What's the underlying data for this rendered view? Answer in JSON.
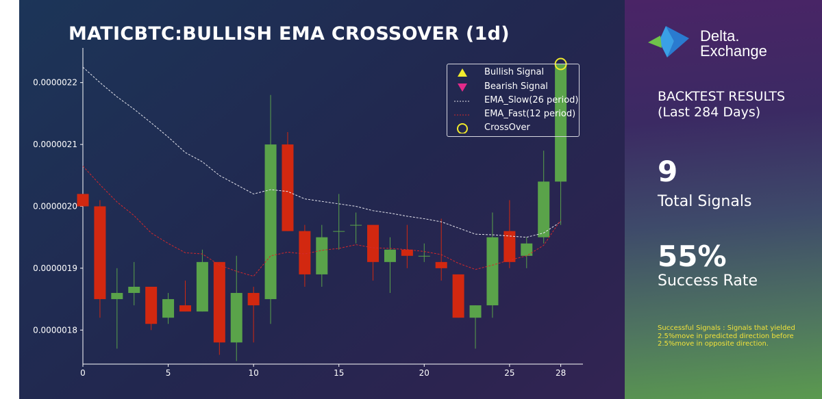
{
  "title": "MATICBTC:BULLISH EMA CROSSOVER (1d)",
  "chart_data": {
    "type": "candlestick",
    "x_ticks": [
      0,
      5,
      10,
      15,
      20,
      25,
      28
    ],
    "y_ticks": [
      "0.0000018",
      "0.0000019",
      "0.0000020",
      "0.0000021",
      "0.0000022"
    ],
    "y_tick_values": [
      1.8e-06,
      1.9e-06,
      2e-06,
      2.1e-06,
      2.2e-06
    ],
    "xlim": [
      0,
      29.3
    ],
    "ylim": [
      1.745e-06,
      2.245e-06
    ],
    "candles": [
      {
        "x": 0,
        "open": 2.02e-06,
        "close": 2e-06,
        "high": 2.02e-06,
        "low": 2e-06
      },
      {
        "x": 1,
        "open": 2e-06,
        "close": 1.85e-06,
        "high": 2.01e-06,
        "low": 1.82e-06
      },
      {
        "x": 2,
        "open": 1.85e-06,
        "close": 1.86e-06,
        "high": 1.9e-06,
        "low": 1.77e-06
      },
      {
        "x": 3,
        "open": 1.86e-06,
        "close": 1.87e-06,
        "high": 1.91e-06,
        "low": 1.84e-06
      },
      {
        "x": 4,
        "open": 1.87e-06,
        "close": 1.81e-06,
        "high": 1.87e-06,
        "low": 1.8e-06
      },
      {
        "x": 5,
        "open": 1.82e-06,
        "close": 1.85e-06,
        "high": 1.86e-06,
        "low": 1.81e-06
      },
      {
        "x": 6,
        "open": 1.84e-06,
        "close": 1.83e-06,
        "high": 1.88e-06,
        "low": 1.83e-06
      },
      {
        "x": 7,
        "open": 1.83e-06,
        "close": 1.91e-06,
        "high": 1.93e-06,
        "low": 1.83e-06
      },
      {
        "x": 8,
        "open": 1.91e-06,
        "close": 1.78e-06,
        "high": 1.91e-06,
        "low": 1.76e-06
      },
      {
        "x": 9,
        "open": 1.78e-06,
        "close": 1.86e-06,
        "high": 1.92e-06,
        "low": 1.75e-06
      },
      {
        "x": 10,
        "open": 1.86e-06,
        "close": 1.84e-06,
        "high": 1.87e-06,
        "low": 1.78e-06
      },
      {
        "x": 11,
        "open": 1.85e-06,
        "close": 2.1e-06,
        "high": 2.18e-06,
        "low": 1.81e-06
      },
      {
        "x": 12,
        "open": 2.1e-06,
        "close": 1.96e-06,
        "high": 2.12e-06,
        "low": 1.96e-06
      },
      {
        "x": 13,
        "open": 1.96e-06,
        "close": 1.89e-06,
        "high": 1.97e-06,
        "low": 1.87e-06
      },
      {
        "x": 14,
        "open": 1.89e-06,
        "close": 1.95e-06,
        "high": 1.97e-06,
        "low": 1.87e-06
      },
      {
        "x": 15,
        "open": 1.96e-06,
        "close": 1.96e-06,
        "high": 2.02e-06,
        "low": 1.93e-06
      },
      {
        "x": 16,
        "open": 1.97e-06,
        "close": 1.97e-06,
        "high": 1.99e-06,
        "low": 1.94e-06
      },
      {
        "x": 17,
        "open": 1.97e-06,
        "close": 1.91e-06,
        "high": 1.97e-06,
        "low": 1.88e-06
      },
      {
        "x": 18,
        "open": 1.91e-06,
        "close": 1.93e-06,
        "high": 1.95e-06,
        "low": 1.86e-06
      },
      {
        "x": 19,
        "open": 1.93e-06,
        "close": 1.92e-06,
        "high": 1.97e-06,
        "low": 1.9e-06
      },
      {
        "x": 20,
        "open": 1.92e-06,
        "close": 1.92e-06,
        "high": 1.94e-06,
        "low": 1.91e-06
      },
      {
        "x": 21,
        "open": 1.91e-06,
        "close": 1.9e-06,
        "high": 1.98e-06,
        "low": 1.88e-06
      },
      {
        "x": 22,
        "open": 1.89e-06,
        "close": 1.82e-06,
        "high": 1.89e-06,
        "low": 1.82e-06
      },
      {
        "x": 23,
        "open": 1.82e-06,
        "close": 1.84e-06,
        "high": 1.84e-06,
        "low": 1.77e-06
      },
      {
        "x": 24,
        "open": 1.84e-06,
        "close": 1.95e-06,
        "high": 1.99e-06,
        "low": 1.82e-06
      },
      {
        "x": 25,
        "open": 1.96e-06,
        "close": 1.91e-06,
        "high": 2.01e-06,
        "low": 1.9e-06
      },
      {
        "x": 26,
        "open": 1.92e-06,
        "close": 1.94e-06,
        "high": 1.95e-06,
        "low": 1.9e-06
      },
      {
        "x": 27,
        "open": 1.95e-06,
        "close": 2.04e-06,
        "high": 2.09e-06,
        "low": 1.94e-06
      },
      {
        "x": 28,
        "open": 2.04e-06,
        "close": 2.23e-06,
        "high": 2.23e-06,
        "low": 1.97e-06
      }
    ],
    "ema_slow": {
      "name": "EMA_Slow(26 period)",
      "values": [
        2.225e-06,
        2.2e-06,
        2.177e-06,
        2.157e-06,
        2.135e-06,
        2.112e-06,
        2.087e-06,
        2.072e-06,
        2.05e-06,
        2.035e-06,
        2.02e-06,
        2.027e-06,
        2.024e-06,
        2.012e-06,
        2.008e-06,
        2.004e-06,
        2e-06,
        1.993e-06,
        1.989e-06,
        1.984e-06,
        1.98e-06,
        1.975e-06,
        1.965e-06,
        1.955e-06,
        1.954e-06,
        1.952e-06,
        1.95e-06,
        1.957e-06,
        1.975e-06
      ]
    },
    "ema_fast": {
      "name": "EMA_Fast(12 period)",
      "values": [
        2.065e-06,
        2.035e-06,
        2.007e-06,
        1.985e-06,
        1.957e-06,
        1.94e-06,
        1.925e-06,
        1.923e-06,
        1.905e-06,
        1.895e-06,
        1.887e-06,
        1.92e-06,
        1.926e-06,
        1.923e-06,
        1.929e-06,
        1.932e-06,
        1.938e-06,
        1.933e-06,
        1.932e-06,
        1.93e-06,
        1.927e-06,
        1.922e-06,
        1.908e-06,
        1.898e-06,
        1.905e-06,
        1.913e-06,
        1.92e-06,
        1.937e-06,
        1.978e-06
      ]
    },
    "crossover": {
      "x": 28,
      "y": 2.23e-06
    },
    "legend": [
      "Bullish Signal",
      "Bearish Signal",
      "EMA_Slow(26 period)",
      "EMA_Fast(12 period)",
      "CrossOver"
    ],
    "legend_position": "top-right",
    "colors": {
      "bull": "#5aa34a",
      "bear": "#d22810",
      "ema_slow": "#e6e6ee",
      "ema_fast": "#d4282b",
      "crossover": "#f0ea2a",
      "bull_signal": "#f2ec2e",
      "bear_signal": "#e22a8a",
      "axis": "#ffffff"
    }
  },
  "panel": {
    "brand_line1": "Delta.",
    "brand_line2": "Exchange",
    "backtest_line1": "BACKTEST RESULTS",
    "backtest_line2": "(Last 284 Days)",
    "total_signals_value": "9",
    "total_signals_label": "Total Signals",
    "success_rate_value": "55%",
    "success_rate_label": "Success Rate",
    "note": "Successful Signals : Signals that yielded 2.5%move in predicted direction before 2.5%move in opposite direction."
  }
}
